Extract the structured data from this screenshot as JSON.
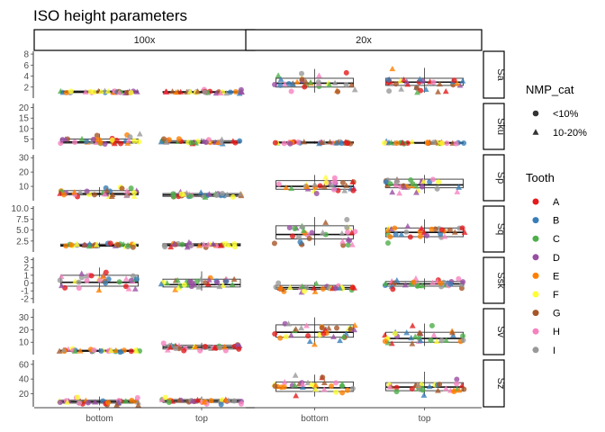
{
  "chart_data": {
    "type": "box+jitter",
    "title": "ISO height parameters",
    "facet_columns": [
      "100x",
      "20x"
    ],
    "facet_rows": [
      "Sa",
      "Sku",
      "Sp",
      "Sq",
      "Ssk",
      "Sv",
      "Sz"
    ],
    "categories": [
      "bottom",
      "top"
    ],
    "legend": {
      "shape": {
        "title": "NMP_cat",
        "items": [
          "<10%",
          "10-20%"
        ]
      },
      "color": {
        "title": "Tooth",
        "items": [
          "A",
          "B",
          "C",
          "D",
          "E",
          "F",
          "G",
          "H",
          "I"
        ],
        "colors": [
          "#E41A1C",
          "#377EB8",
          "#4DAF4A",
          "#984EA3",
          "#FF7F00",
          "#FFFF33",
          "#A65628",
          "#F781BF",
          "#999999"
        ]
      }
    },
    "rows": [
      {
        "name": "Sa",
        "ylim": [
          0,
          8.5
        ],
        "ticks": [
          2,
          4,
          6,
          8
        ],
        "boxes": {
          "100x": {
            "bottom": [
              0.9,
              1.0,
              1.1,
              1.3,
              1.6
            ],
            "top": [
              0.8,
              1.0,
              1.1,
              1.2,
              1.6
            ]
          },
          "20x": {
            "bottom": [
              1.0,
              2.0,
              2.7,
              3.6,
              5.3
            ],
            "top": [
              1.0,
              2.3,
              2.9,
              3.6,
              5.5
            ]
          }
        }
      },
      {
        "name": "Sku",
        "ylim": [
          0,
          22
        ],
        "ticks": [
          5,
          10,
          15,
          20
        ],
        "boxes": {
          "100x": {
            "bottom": [
              2.6,
              3.0,
              3.6,
              5.0,
              7.5
            ],
            "top": [
              2.6,
              3.0,
              3.4,
              4.2,
              5.3
            ]
          },
          "20x": {
            "bottom": [
              2.7,
              3.0,
              3.3,
              3.6,
              4.0
            ],
            "top": [
              2.5,
              2.9,
              3.1,
              3.4,
              4.0
            ]
          }
        }
      },
      {
        "name": "Sp",
        "ylim": [
          0,
          32
        ],
        "ticks": [
          10,
          20,
          30
        ],
        "boxes": {
          "100x": {
            "bottom": [
              2.5,
              4.0,
              5.0,
              7.0,
              9.5
            ],
            "top": [
              2.0,
              3.0,
              4.0,
              5.0,
              6.5
            ]
          },
          "20x": {
            "bottom": [
              5.0,
              8.0,
              10.0,
              14.0,
              18.0
            ],
            "top": [
              5.0,
              9.0,
              11.0,
              15.0,
              18.0
            ]
          }
        }
      },
      {
        "name": "Sq",
        "ylim": [
          0,
          10.5
        ],
        "ticks": [
          2.5,
          5.0,
          7.5,
          10.0
        ],
        "boxes": {
          "100x": {
            "bottom": [
              1.0,
              1.3,
              1.5,
              1.8,
              2.2
            ],
            "top": [
              1.0,
              1.4,
              1.6,
              1.9,
              2.3
            ]
          },
          "20x": {
            "bottom": [
              1.5,
              3.0,
              4.0,
              6.0,
              8.0
            ],
            "top": [
              2.0,
              3.5,
              4.5,
              5.5,
              7.5
            ]
          }
        }
      },
      {
        "name": "Ssk",
        "ylim": [
          -2.6,
          3.3
        ],
        "ticks": [
          -2,
          -1,
          0,
          1,
          2,
          3
        ],
        "boxes": {
          "100x": {
            "bottom": [
              -1.0,
              -0.4,
              0.1,
              1.0,
              2.0
            ],
            "top": [
              -1.0,
              -0.5,
              -0.2,
              0.5,
              1.5
            ]
          },
          "20x": {
            "bottom": [
              -1.2,
              -0.8,
              -0.6,
              -0.3,
              0.1
            ],
            "top": [
              -0.8,
              -0.4,
              -0.1,
              0.2,
              0.6
            ]
          }
        }
      },
      {
        "name": "Sv",
        "ylim": [
          0,
          37
        ],
        "ticks": [
          10,
          20,
          30
        ],
        "boxes": {
          "100x": {
            "bottom": [
              1.5,
              2.5,
              3.0,
              3.6,
              5.0
            ],
            "top": [
              3.0,
              4.5,
              6.0,
              7.5,
              9.5
            ]
          },
          "20x": {
            "bottom": [
              8.0,
              14.0,
              18.0,
              24.0,
              30.0
            ],
            "top": [
              7.0,
              10.0,
              13.0,
              18.0,
              25.0
            ]
          }
        }
      },
      {
        "name": "Sz",
        "ylim": [
          2,
          66
        ],
        "ticks": [
          20,
          40,
          60
        ],
        "boxes": {
          "100x": {
            "bottom": [
              4.0,
              7.0,
              9.0,
              11.0,
              16.0
            ],
            "top": [
              5.0,
              8.0,
              10.0,
              12.0,
              16.0
            ]
          },
          "20x": {
            "bottom": [
              16.0,
              23.0,
              28.0,
              36.0,
              46.0
            ],
            "top": [
              17.0,
              24.0,
              29.0,
              35.0,
              50.0
            ]
          }
        }
      }
    ]
  }
}
